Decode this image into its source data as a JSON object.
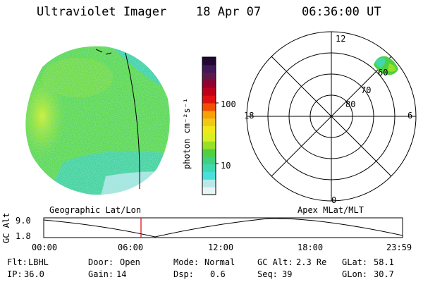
{
  "header": {
    "title": "Ultraviolet Imager",
    "date": "18 Apr 07",
    "time": "06:36:00 UT"
  },
  "colorbar": {
    "unit_label": "photon cm⁻²s⁻¹",
    "ticks": [
      "100",
      "10"
    ],
    "colors": [
      "#e8f4f4",
      "#b8e8e8",
      "#48e0d8",
      "#40d8b0",
      "#40d080",
      "#50d040",
      "#98e028",
      "#d8f020",
      "#f0e818",
      "#f0c818",
      "#f8a008",
      "#f05000",
      "#e01010",
      "#c00018",
      "#900030",
      "#601848",
      "#401858",
      "#200830"
    ]
  },
  "polar": {
    "mlt_labels": [
      "12",
      "18",
      "6",
      "0"
    ],
    "lat_labels": [
      "60",
      "70",
      "80"
    ]
  },
  "timeline": {
    "left_title": "Geographic Lat/Lon",
    "right_title": "Apex MLat/MLT",
    "axis_label": "GC Alt",
    "y_ticks": [
      "9.0",
      "1.8"
    ],
    "x_ticks": [
      "00:00",
      "06:00",
      "12:00",
      "18:00",
      "23:59"
    ]
  },
  "info": {
    "row1": [
      {
        "label": "Flt:",
        "value": "LBHL"
      },
      {
        "label": "Door:",
        "value": "Open"
      },
      {
        "label": "Mode:",
        "value": "Normal"
      },
      {
        "label": "GC Alt:",
        "value": "2.3 Re"
      },
      {
        "label": "GLat:",
        "value": "58.1"
      }
    ],
    "row2": [
      {
        "label": "IP:",
        "value": "36.0"
      },
      {
        "label": "Gain:",
        "value": "14"
      },
      {
        "label": "Dsp:",
        "value": "0.6"
      },
      {
        "label": "Seq:",
        "value": "39"
      },
      {
        "label": "GLon:",
        "value": "30.7"
      }
    ]
  }
}
